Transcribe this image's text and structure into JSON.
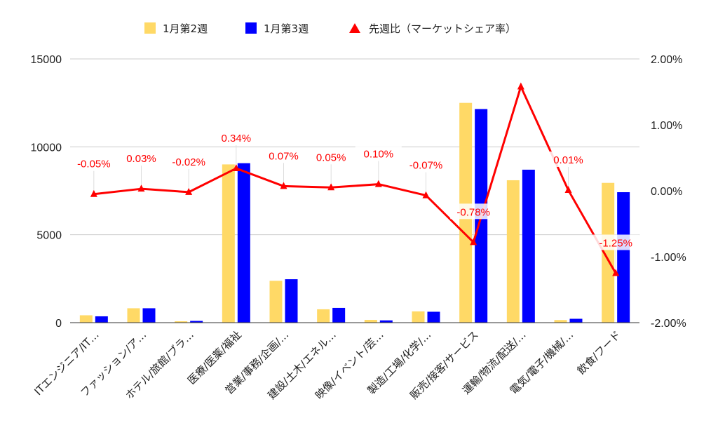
{
  "chart_data": {
    "type": "bar",
    "categories": [
      "ITエンジニア/IT…",
      "ファッション/ア…",
      "ホテル/旅館/ブラ…",
      "医療/医薬/福祉",
      "営業/事務/企画/…",
      "建設/土木/エネル…",
      "映像/イベント/芸…",
      "製造/工場/化学/…",
      "販売/接客/サービス",
      "運輸/物流/配送/…",
      "電気/電子/機械/…",
      "飲食/フード"
    ],
    "series": [
      {
        "name": "1月第2週",
        "axis": "left",
        "values": [
          420,
          820,
          80,
          9000,
          2380,
          760,
          160,
          640,
          12500,
          8100,
          150,
          7950
        ]
      },
      {
        "name": "1月第3週",
        "axis": "left",
        "values": [
          360,
          820,
          100,
          9070,
          2470,
          840,
          130,
          620,
          12150,
          8700,
          220,
          7420
        ]
      },
      {
        "name": "先週比（マーケットシェア率）",
        "axis": "right",
        "type": "line",
        "values": [
          -0.05,
          0.03,
          -0.02,
          0.34,
          0.07,
          0.05,
          0.1,
          -0.07,
          -0.78,
          1.58,
          0.01,
          -1.25
        ],
        "labels": [
          "-0.05%",
          "0.03%",
          "-0.02%",
          "0.34%",
          "0.07%",
          "0.05%",
          "0.10%",
          "-0.07%",
          "-0.78%",
          "",
          "0.01%",
          "-1.25%"
        ]
      }
    ],
    "ylim": [
      0,
      15000
    ],
    "yticks": [
      "0",
      "5000",
      "10000",
      "15000"
    ],
    "y2lim": [
      -2,
      2
    ],
    "y2ticks": [
      "-2.00%",
      "-1.00%",
      "0.00%",
      "1.00%",
      "2.00%"
    ],
    "legend_position": "top",
    "grid": true,
    "colors": {
      "series1": "#FFD966",
      "series2": "#0000FF",
      "line": "#FF0000",
      "grid": "#CCCCCC",
      "axis": "#333333"
    }
  }
}
